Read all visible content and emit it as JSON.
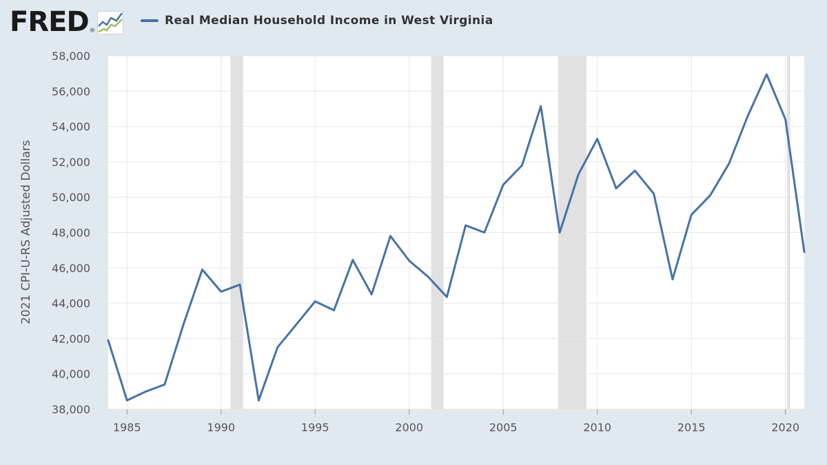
{
  "header": {
    "logo_text": "FRED",
    "logo_registered": "®",
    "legend_label": "Real Median Household Income in West Virginia"
  },
  "colors": {
    "background": "#e1e9f0",
    "plot_background": "#ffffff",
    "series": "#4572a7",
    "recession": "#e1e1e1",
    "grid": "#e6e6e6"
  },
  "chart_data": {
    "type": "line",
    "title": "",
    "xlabel": "",
    "ylabel": "2021 CPI-U-RS Adjusted Dollars",
    "xlim": [
      1984,
      2021
    ],
    "ylim": [
      38000,
      58000
    ],
    "x_ticks": [
      1985,
      1990,
      1995,
      2000,
      2005,
      2010,
      2015,
      2020
    ],
    "y_ticks": [
      38000,
      40000,
      42000,
      44000,
      46000,
      48000,
      50000,
      52000,
      54000,
      56000,
      58000
    ],
    "y_tick_labels": [
      "38,000",
      "40,000",
      "42,000",
      "44,000",
      "46,000",
      "48,000",
      "50,000",
      "52,000",
      "54,000",
      "56,000",
      "58,000"
    ],
    "grid": true,
    "recessions": [
      {
        "start": 1990.5,
        "end": 1991.17
      },
      {
        "start": 2001.17,
        "end": 2001.83
      },
      {
        "start": 2007.92,
        "end": 2009.42
      },
      {
        "start": 2020.08,
        "end": 2020.25
      }
    ],
    "series": [
      {
        "name": "Real Median Household Income in West Virginia",
        "x": [
          1984,
          1985,
          1986,
          1987,
          1988,
          1989,
          1990,
          1991,
          1992,
          1993,
          1994,
          1995,
          1996,
          1997,
          1998,
          1999,
          2000,
          2001,
          2002,
          2003,
          2004,
          2005,
          2006,
          2007,
          2008,
          2009,
          2010,
          2011,
          2012,
          2013,
          2014,
          2015,
          2016,
          2017,
          2018,
          2019,
          2020,
          2021
        ],
        "values": [
          41900,
          38500,
          39000,
          39400,
          42800,
          45900,
          44650,
          45050,
          38500,
          41500,
          42800,
          44100,
          43600,
          46450,
          44500,
          47800,
          46400,
          45500,
          44350,
          48400,
          48000,
          50700,
          51800,
          55150,
          48000,
          51300,
          53300,
          50500,
          51500,
          50200,
          45350,
          49000,
          50100,
          51900,
          54600,
          56950,
          54400,
          46900
        ]
      }
    ]
  }
}
